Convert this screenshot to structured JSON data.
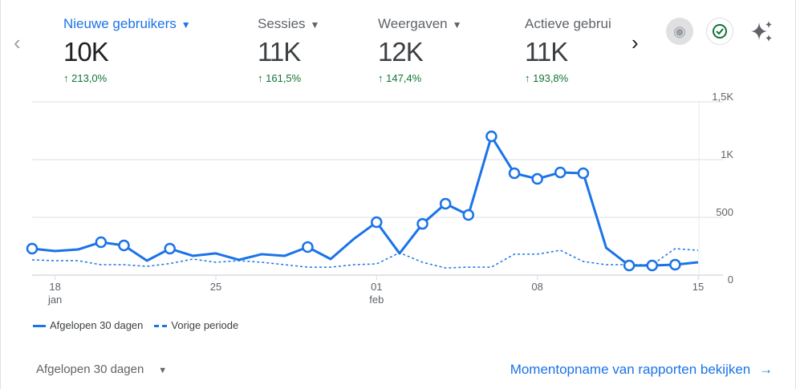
{
  "metrics": [
    {
      "label": "Nieuwe gebruikers",
      "value": "10K",
      "change": "213,0%",
      "active": true
    },
    {
      "label": "Sessies",
      "value": "11K",
      "change": "161,5%"
    },
    {
      "label": "Weergaven",
      "value": "12K",
      "change": "147,4%"
    },
    {
      "label": "Actieve gebrui",
      "value": "11K",
      "change": "193,8%"
    }
  ],
  "icons": {
    "prev": "chevron-left-icon",
    "next": "chevron-right-icon",
    "badge": "medal-icon",
    "check": "check-circle-icon",
    "ai": "sparkle-icon"
  },
  "colors": {
    "accent": "#1a73e8",
    "positive": "#137333"
  },
  "chart_data": {
    "type": "line",
    "x": [
      "17 jan",
      "18 jan",
      "19 jan",
      "20 jan",
      "21 jan",
      "22 jan",
      "23 jan",
      "24 jan",
      "25 jan",
      "26 jan",
      "27 jan",
      "28 jan",
      "29 jan",
      "30 jan",
      "31 jan",
      "01 feb",
      "02 feb",
      "03 feb",
      "04 feb",
      "05 feb",
      "06 feb",
      "07 feb",
      "08 feb",
      "09 feb",
      "10 feb",
      "11 feb",
      "12 feb",
      "13 feb",
      "14 feb",
      "15 feb"
    ],
    "x_ticks": [
      {
        "day": "18",
        "month": "jan",
        "index": 1
      },
      {
        "day": "25",
        "month": "",
        "index": 8
      },
      {
        "day": "01",
        "month": "feb",
        "index": 15
      },
      {
        "day": "08",
        "month": "",
        "index": 22
      },
      {
        "day": "15",
        "month": "",
        "index": 29
      }
    ],
    "y_ticks": [
      "0",
      "500",
      "1K",
      "1,5K"
    ],
    "ylim": [
      0,
      1500
    ],
    "grid": true,
    "legend_placement": "bottom-left",
    "series": [
      {
        "name": "Afgelopen 30 dagen",
        "style": "solid",
        "values": [
          229,
          208,
          222,
          285,
          257,
          125,
          229,
          167,
          188,
          132,
          181,
          167,
          243,
          139,
          312,
          458,
          188,
          444,
          618,
          521,
          1201,
          882,
          833,
          889,
          882,
          236,
          83,
          83,
          90,
          111
        ],
        "markers": [
          0,
          3,
          4,
          6,
          12,
          15,
          17,
          18,
          19,
          20,
          21,
          22,
          23,
          24,
          26,
          27,
          28
        ]
      },
      {
        "name": "Vorige periode",
        "style": "dashed",
        "values": [
          132,
          125,
          125,
          90,
          90,
          76,
          100,
          139,
          111,
          125,
          111,
          90,
          69,
          69,
          90,
          97,
          194,
          111,
          62,
          69,
          69,
          181,
          181,
          215,
          118,
          90,
          90,
          90,
          229,
          215
        ]
      }
    ]
  },
  "footer": {
    "range": "Afgelopen 30 dagen",
    "link": "Momentopname van rapporten bekijken"
  }
}
